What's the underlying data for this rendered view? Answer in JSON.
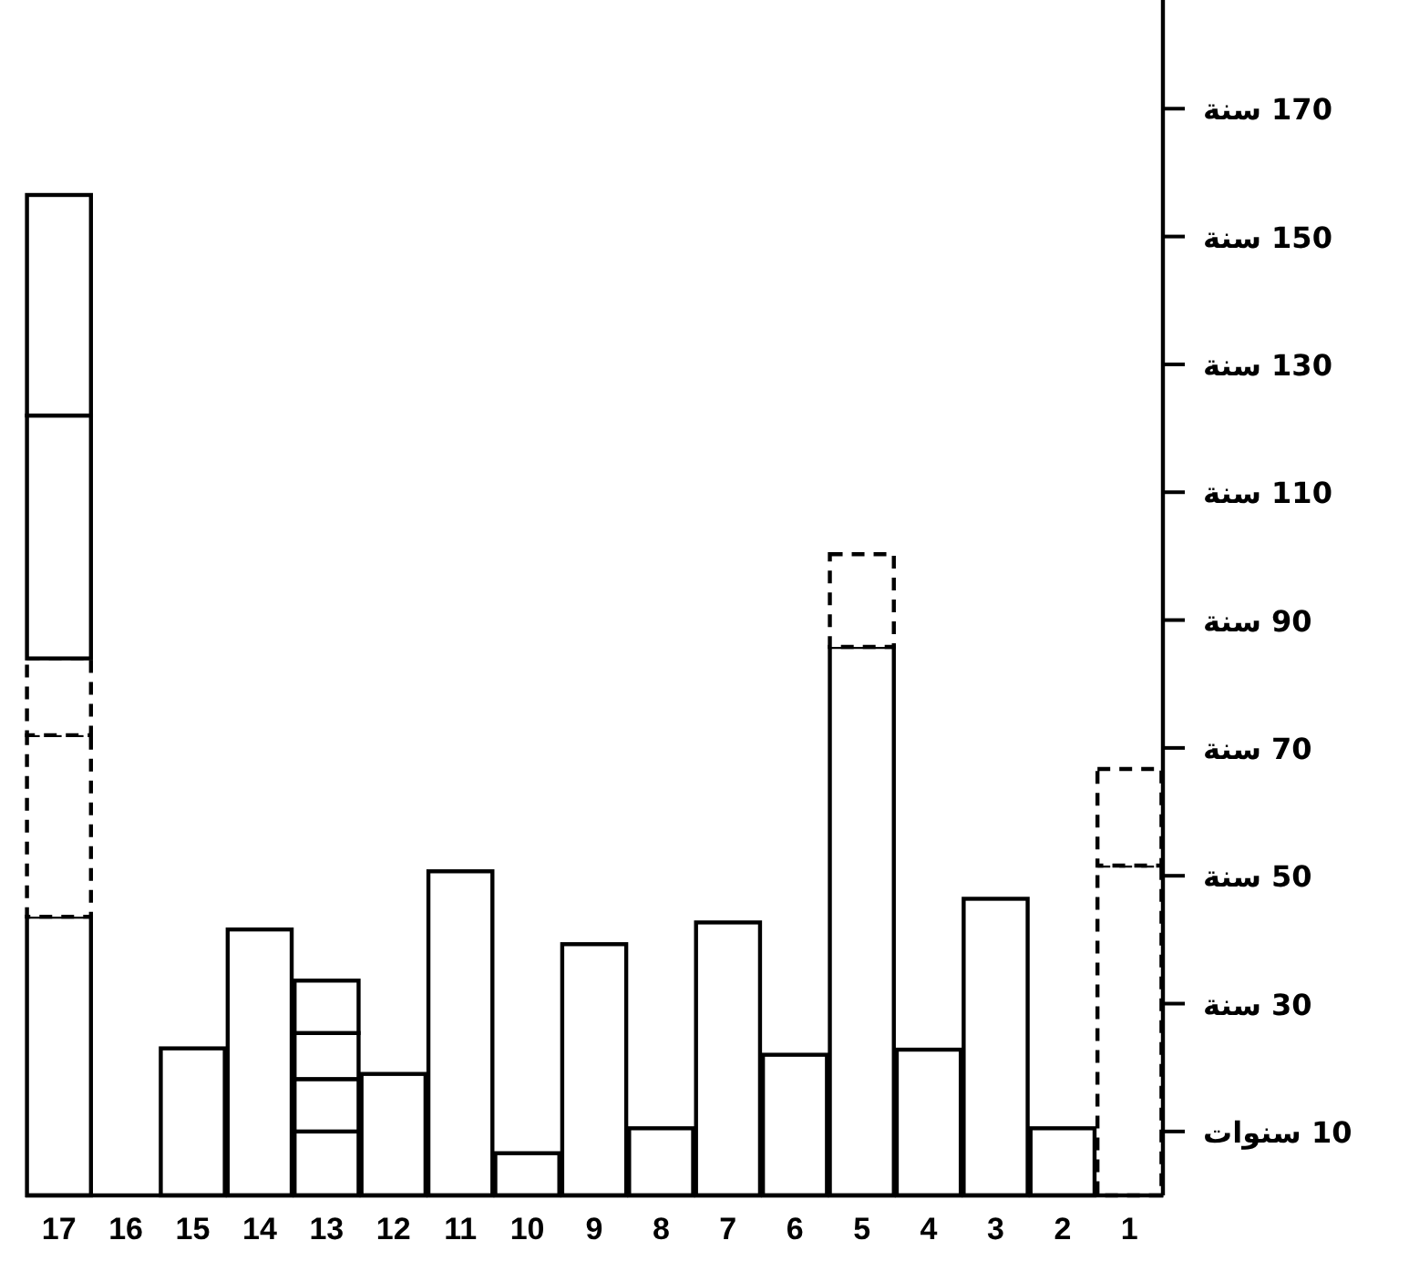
{
  "chart_data": {
    "type": "bar",
    "stacked": true,
    "categories": [
      "17",
      "16",
      "15",
      "14",
      "13",
      "12",
      "11",
      "10",
      "9",
      "8",
      "7",
      "6",
      "5",
      "4",
      "3",
      "2",
      "1"
    ],
    "series": [
      {
        "color": "#000000",
        "line_style": "solid",
        "values": [
          43.6,
          null,
          23,
          null,
          10,
          null,
          50.7,
          null,
          39.3,
          null,
          42.7,
          null,
          85.8,
          null,
          46.4,
          null,
          null
        ]
      },
      {
        "color": "#000000",
        "line_style": "solid",
        "values": [
          null,
          null,
          null,
          41.6,
          null,
          19,
          null,
          6.6,
          null,
          10.5,
          null,
          22,
          null,
          22.8,
          null,
          10.5,
          null
        ]
      },
      {
        "color": "#000000",
        "line_style": "dashed",
        "values": [
          28.4,
          null,
          null,
          null,
          null,
          null,
          null,
          null,
          null,
          null,
          null,
          null,
          14.5,
          null,
          null,
          null,
          51.6
        ]
      },
      {
        "color": "#000000",
        "line_style": "dashed",
        "values": [
          12,
          null,
          null,
          null,
          null,
          null,
          null,
          null,
          null,
          null,
          null,
          null,
          null,
          null,
          null,
          null,
          15.1
        ]
      },
      {
        "color": "#000000",
        "line_style": "solid",
        "values": [
          38,
          null,
          null,
          null,
          8.2,
          null,
          null,
          null,
          null,
          null,
          null,
          null,
          null,
          null,
          null,
          null,
          null
        ]
      },
      {
        "color": "#000000",
        "line_style": "solid",
        "values": [
          34.5,
          null,
          null,
          null,
          7.2,
          null,
          null,
          null,
          null,
          null,
          null,
          null,
          null,
          null,
          null,
          null,
          null
        ]
      },
      {
        "color": "#000000",
        "line_style": "solid",
        "values": [
          null,
          null,
          null,
          null,
          8.2,
          null,
          null,
          null,
          null,
          null,
          null,
          null,
          null,
          null,
          null,
          null,
          null
        ]
      }
    ],
    "ylim": [
      0,
      187
    ],
    "yticks": [
      {
        "value": 10,
        "label": "10 سنوات"
      },
      {
        "value": 30,
        "label": "30 سنة"
      },
      {
        "value": 50,
        "label": "50 سنة"
      },
      {
        "value": 70,
        "label": "70 سنة"
      },
      {
        "value": 90,
        "label": "90 سنة"
      },
      {
        "value": 110,
        "label": "110 سنة"
      },
      {
        "value": 130,
        "label": "130 سنة"
      },
      {
        "value": 150,
        "label": "150 سنة"
      },
      {
        "value": 170,
        "label": "170 سنة"
      }
    ]
  }
}
